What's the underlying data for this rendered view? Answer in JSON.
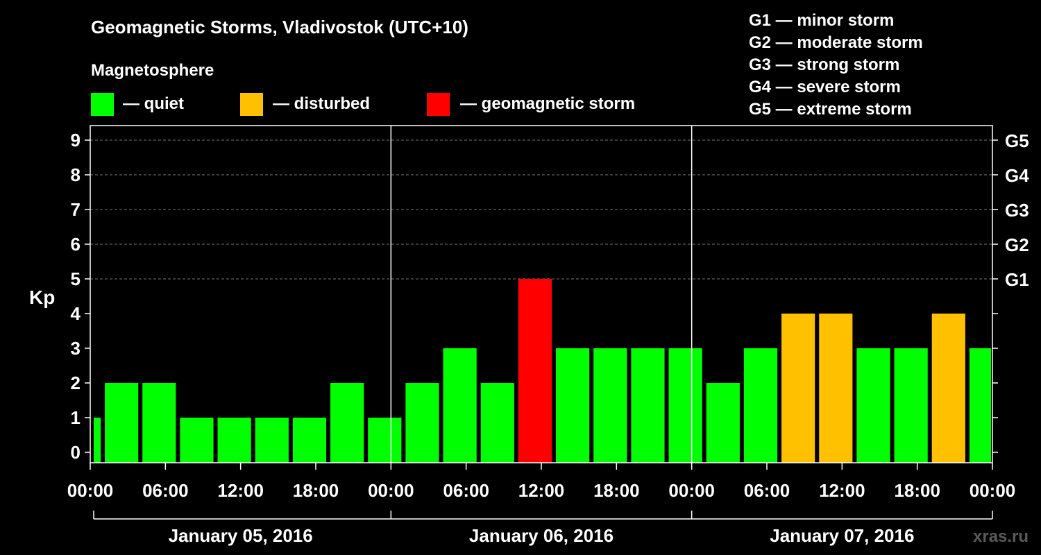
{
  "title": "Geomagnetic Storms, Vladivostok (UTC+10)",
  "magnetosphere_label": "Magnetosphere",
  "legend": [
    {
      "label": "— quiet",
      "color": "#00ff00"
    },
    {
      "label": "— disturbed",
      "color": "#ffc000"
    },
    {
      "label": "— geomagnetic storm",
      "color": "#ff0000"
    }
  ],
  "scale_legend": [
    "G1 — minor storm",
    "G2 — moderate storm",
    "G3 — strong storm",
    "G4 — severe storm",
    "G5 — extreme storm"
  ],
  "watermark": "xras.ru",
  "chart_data": {
    "type": "bar",
    "ylabel": "Kp",
    "ylim": [
      0,
      9
    ],
    "yticks": [
      "0",
      "1",
      "2",
      "3",
      "4",
      "5",
      "6",
      "7",
      "8",
      "9"
    ],
    "g_labels": [
      {
        "kp": 5,
        "label": "G1"
      },
      {
        "kp": 6,
        "label": "G2"
      },
      {
        "kp": 7,
        "label": "G3"
      },
      {
        "kp": 8,
        "label": "G4"
      },
      {
        "kp": 9,
        "label": "G5"
      }
    ],
    "xticks": [
      "00:00",
      "06:00",
      "12:00",
      "18:00",
      "00:00",
      "06:00",
      "12:00",
      "18:00",
      "00:00",
      "06:00",
      "12:00",
      "18:00",
      "00:00"
    ],
    "days": [
      "January 05, 2016",
      "January 06, 2016",
      "January 07, 2016"
    ],
    "grid": "dashed horizontal at Kp 5-9",
    "bars": [
      {
        "start_hour": 0,
        "end_hour": 1,
        "kp": 1,
        "status": "quiet"
      },
      {
        "start_hour": 1,
        "end_hour": 4,
        "kp": 2,
        "status": "quiet"
      },
      {
        "start_hour": 4,
        "end_hour": 7,
        "kp": 2,
        "status": "quiet"
      },
      {
        "start_hour": 7,
        "end_hour": 10,
        "kp": 1,
        "status": "quiet"
      },
      {
        "start_hour": 10,
        "end_hour": 13,
        "kp": 1,
        "status": "quiet"
      },
      {
        "start_hour": 13,
        "end_hour": 16,
        "kp": 1,
        "status": "quiet"
      },
      {
        "start_hour": 16,
        "end_hour": 19,
        "kp": 1,
        "status": "quiet"
      },
      {
        "start_hour": 19,
        "end_hour": 22,
        "kp": 2,
        "status": "quiet"
      },
      {
        "start_hour": 22,
        "end_hour": 25,
        "kp": 1,
        "status": "quiet"
      },
      {
        "start_hour": 25,
        "end_hour": 28,
        "kp": 2,
        "status": "quiet"
      },
      {
        "start_hour": 28,
        "end_hour": 31,
        "kp": 3,
        "status": "quiet"
      },
      {
        "start_hour": 31,
        "end_hour": 34,
        "kp": 2,
        "status": "quiet"
      },
      {
        "start_hour": 34,
        "end_hour": 37,
        "kp": 5,
        "status": "storm"
      },
      {
        "start_hour": 37,
        "end_hour": 40,
        "kp": 3,
        "status": "quiet"
      },
      {
        "start_hour": 40,
        "end_hour": 43,
        "kp": 3,
        "status": "quiet"
      },
      {
        "start_hour": 43,
        "end_hour": 46,
        "kp": 3,
        "status": "quiet"
      },
      {
        "start_hour": 46,
        "end_hour": 49,
        "kp": 3,
        "status": "quiet"
      },
      {
        "start_hour": 49,
        "end_hour": 52,
        "kp": 2,
        "status": "quiet"
      },
      {
        "start_hour": 52,
        "end_hour": 55,
        "kp": 3,
        "status": "quiet"
      },
      {
        "start_hour": 55,
        "end_hour": 58,
        "kp": 4,
        "status": "disturbed"
      },
      {
        "start_hour": 58,
        "end_hour": 61,
        "kp": 4,
        "status": "disturbed"
      },
      {
        "start_hour": 61,
        "end_hour": 64,
        "kp": 3,
        "status": "quiet"
      },
      {
        "start_hour": 64,
        "end_hour": 67,
        "kp": 3,
        "status": "quiet"
      },
      {
        "start_hour": 67,
        "end_hour": 70,
        "kp": 4,
        "status": "disturbed"
      },
      {
        "start_hour": 70,
        "end_hour": 72,
        "kp": 3,
        "status": "quiet"
      }
    ],
    "status_colors": {
      "quiet": "#00ff00",
      "disturbed": "#ffc000",
      "storm": "#ff0000"
    }
  }
}
